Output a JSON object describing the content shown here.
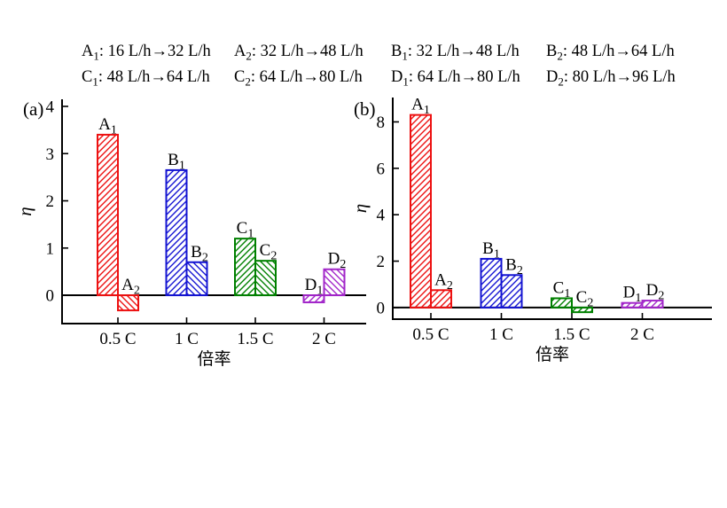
{
  "figure": {
    "background": "#ffffff",
    "axis_color": "#000000",
    "colors": {
      "A": "#ed1111",
      "B": "#1414d2",
      "C": "#008000",
      "D": "#a226c9"
    }
  },
  "legend": {
    "rows": [
      [
        {
          "letter": "A",
          "sub": "1",
          "desc": "16 L/h→32 L/h"
        },
        {
          "letter": "A",
          "sub": "2",
          "desc": "32 L/h→48 L/h"
        },
        {
          "letter": "B",
          "sub": "1",
          "desc": "32 L/h→48 L/h"
        },
        {
          "letter": "B",
          "sub": "2",
          "desc": "48 L/h→64 L/h"
        }
      ],
      [
        {
          "letter": "C",
          "sub": "1",
          "desc": "48 L/h→64 L/h"
        },
        {
          "letter": "C",
          "sub": "2",
          "desc": "64 L/h→80 L/h"
        },
        {
          "letter": "D",
          "sub": "1",
          "desc": "64 L/h→80 L/h"
        },
        {
          "letter": "D",
          "sub": "2",
          "desc": "80 L/h→96 L/h"
        }
      ]
    ]
  },
  "chart_data": [
    {
      "type": "bar",
      "panel_label": "(a)",
      "ylabel": "η",
      "xlabel": "倍率",
      "grid": false,
      "legend_position": "top-outside",
      "categories": [
        "0.5 C",
        "1 C",
        "1.5 C",
        "2 C"
      ],
      "yticks": [
        0,
        1,
        2,
        3,
        4
      ],
      "ylim": [
        -0.6,
        4.15
      ],
      "bars": [
        {
          "name": "A1",
          "letter": "A",
          "sub": "1",
          "category": "0.5 C",
          "value": 3.4,
          "color": "#ed1111",
          "hatch": "/"
        },
        {
          "name": "A2",
          "letter": "A",
          "sub": "2",
          "category": "0.5 C",
          "value": -0.32,
          "color": "#ed1111",
          "hatch": "\\"
        },
        {
          "name": "B1",
          "letter": "B",
          "sub": "1",
          "category": "1 C",
          "value": 2.65,
          "color": "#1414d2",
          "hatch": "/"
        },
        {
          "name": "B2",
          "letter": "B",
          "sub": "2",
          "category": "1 C",
          "value": 0.7,
          "color": "#1414d2",
          "hatch": "\\"
        },
        {
          "name": "C1",
          "letter": "C",
          "sub": "1",
          "category": "1.5 C",
          "value": 1.2,
          "color": "#008000",
          "hatch": "/"
        },
        {
          "name": "C2",
          "letter": "C",
          "sub": "2",
          "category": "1.5 C",
          "value": 0.73,
          "color": "#008000",
          "hatch": "\\"
        },
        {
          "name": "D1",
          "letter": "D",
          "sub": "1",
          "category": "2 C",
          "value": -0.15,
          "color": "#a226c9",
          "hatch": "/"
        },
        {
          "name": "D2",
          "letter": "D",
          "sub": "2",
          "category": "2 C",
          "value": 0.55,
          "color": "#a226c9",
          "hatch": "\\"
        }
      ]
    },
    {
      "type": "bar",
      "panel_label": "(b)",
      "ylabel": "η",
      "xlabel": "倍率",
      "grid": false,
      "legend_position": "top-outside",
      "categories": [
        "0.5 C",
        "1 C",
        "1.5 C",
        "2 C"
      ],
      "yticks": [
        0,
        2,
        4,
        6,
        8
      ],
      "ylim": [
        -0.5,
        9.05
      ],
      "bars": [
        {
          "name": "A1",
          "letter": "A",
          "sub": "1",
          "category": "0.5 C",
          "value": 8.3,
          "color": "#ed1111",
          "hatch": "/"
        },
        {
          "name": "A2",
          "letter": "A",
          "sub": "2",
          "category": "0.5 C",
          "value": 0.75,
          "color": "#ed1111",
          "hatch": "/"
        },
        {
          "name": "B1",
          "letter": "B",
          "sub": "1",
          "category": "1 C",
          "value": 2.1,
          "color": "#1414d2",
          "hatch": "/"
        },
        {
          "name": "B2",
          "letter": "B",
          "sub": "2",
          "category": "1 C",
          "value": 1.4,
          "color": "#1414d2",
          "hatch": "/"
        },
        {
          "name": "C1",
          "letter": "C",
          "sub": "1",
          "category": "1.5 C",
          "value": 0.4,
          "color": "#008000",
          "hatch": "/"
        },
        {
          "name": "C2",
          "letter": "C",
          "sub": "2",
          "category": "1.5 C",
          "value": -0.2,
          "color": "#008000",
          "hatch": "/"
        },
        {
          "name": "D1",
          "letter": "D",
          "sub": "1",
          "category": "2 C",
          "value": 0.2,
          "color": "#a226c9",
          "hatch": "/"
        },
        {
          "name": "D2",
          "letter": "D",
          "sub": "2",
          "category": "2 C",
          "value": 0.3,
          "color": "#a226c9",
          "hatch": "/"
        }
      ]
    }
  ]
}
